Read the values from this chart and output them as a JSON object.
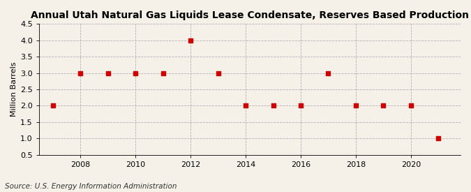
{
  "title": "Annual Utah Natural Gas Liquids Lease Condensate, Reserves Based Production",
  "ylabel": "Million Barrels",
  "source": "Source: U.S. Energy Information Administration",
  "years": [
    2007,
    2008,
    2009,
    2010,
    2011,
    2012,
    2013,
    2014,
    2015,
    2016,
    2017,
    2018,
    2019,
    2020,
    2021
  ],
  "values": [
    2.0,
    3.0,
    3.0,
    3.0,
    3.0,
    4.0,
    3.0,
    2.0,
    2.0,
    2.0,
    3.0,
    2.0,
    2.0,
    2.0,
    1.0
  ],
  "ylim": [
    0.5,
    4.5
  ],
  "yticks": [
    0.5,
    1.0,
    1.5,
    2.0,
    2.5,
    3.0,
    3.5,
    4.0,
    4.5
  ],
  "xticks": [
    2008,
    2010,
    2012,
    2014,
    2016,
    2018,
    2020
  ],
  "xlim": [
    2006.5,
    2021.8
  ],
  "marker_color": "#cc0000",
  "marker": "s",
  "marker_size": 4,
  "grid_color": "#aaaaaa",
  "background_color": "#f5f0e8",
  "title_fontsize": 10,
  "label_fontsize": 8,
  "tick_fontsize": 8,
  "source_fontsize": 7.5
}
